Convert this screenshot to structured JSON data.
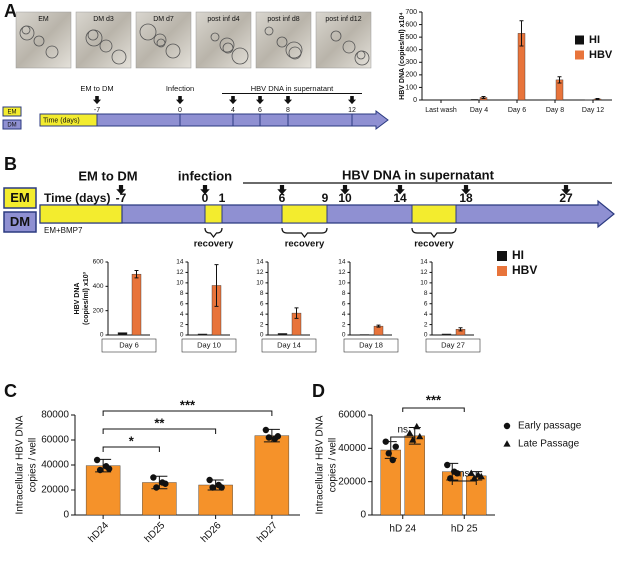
{
  "panel_labels": [
    "A",
    "B",
    "C",
    "D"
  ],
  "images": [
    "EM",
    "DM d3",
    "DM d7",
    "post inf d4",
    "post inf d8",
    "post inf d12"
  ],
  "timeline_a": {
    "stages": [
      "EM",
      "DM"
    ],
    "axis_label": "Time (days)",
    "events": [
      "EM to DM",
      "Infection",
      "HBV DNA in supernatant"
    ],
    "days": [
      "-7",
      "0",
      "4",
      "6",
      "8",
      "12"
    ]
  },
  "timeline_b": {
    "stages": [
      "EM",
      "DM"
    ],
    "axis_label": "Time (days)",
    "events": [
      "EM to DM",
      "infection",
      "HBV DNA in supernatant"
    ],
    "days": [
      "-7",
      "0",
      "1",
      "6",
      "9",
      "10",
      "14",
      "18",
      "27"
    ],
    "medium": "EM+BMP7",
    "recovery": [
      "recovery",
      "recovery",
      "recovery"
    ]
  },
  "chart_data": [
    {
      "type": "bar",
      "ylabel": "HBV DNA (copies/ml) x10⁴",
      "categories": [
        "Last wash",
        "Day 4",
        "Day 6",
        "Day 8",
        "Day 12"
      ],
      "series": [
        {
          "name": "HI",
          "color": "#111111",
          "values": [
            0,
            5,
            3,
            3,
            2
          ]
        },
        {
          "name": "HBV",
          "color": "#e8743b",
          "values": [
            0,
            20,
            530,
            160,
            8
          ],
          "errors": [
            0,
            8,
            100,
            25,
            4
          ]
        }
      ],
      "ylim": [
        0,
        700
      ],
      "yticks": [
        0,
        100,
        200,
        300,
        400,
        500,
        600,
        700
      ]
    },
    {
      "type": "facet-bar",
      "ylabel": [
        "HBV DNA",
        "(copies/ml) x10³"
      ],
      "categories": [
        "Day 6",
        "Day 10",
        "Day 14",
        "Day 18",
        "Day 27"
      ],
      "series": [
        {
          "name": "HI",
          "color": "#111111",
          "values": [
            20,
            0.2,
            0.3,
            0.1,
            0.2
          ]
        },
        {
          "name": "HBV",
          "color": "#e8743b",
          "values": [
            500,
            9.5,
            4.2,
            1.7,
            1.1
          ],
          "errors": [
            30,
            4,
            1,
            0.2,
            0.3
          ]
        }
      ],
      "ylim": [
        [
          0,
          600
        ],
        [
          0,
          14
        ],
        [
          0,
          14
        ],
        [
          0,
          14
        ],
        [
          0,
          14
        ]
      ],
      "yticks": [
        [
          0,
          200,
          400,
          600
        ],
        [
          0,
          2,
          4,
          6,
          8,
          10,
          12,
          14
        ],
        [
          0,
          2,
          4,
          6,
          8,
          10,
          12,
          14
        ],
        [
          0,
          2,
          4,
          6,
          8,
          10,
          12,
          14
        ],
        [
          0,
          2,
          4,
          6,
          8,
          10,
          12,
          14
        ]
      ]
    },
    {
      "type": "bar",
      "ylabel": [
        "Intracellular HBV DNA",
        "copies / well"
      ],
      "categories": [
        "hD24",
        "hD25",
        "hD26",
        "hD27"
      ],
      "color": "#f5922a",
      "values": [
        39500,
        26000,
        24000,
        63500
      ],
      "errors": [
        5000,
        5000,
        4000,
        5000
      ],
      "points": [
        [
          44000,
          37000,
          36000,
          39000
        ],
        [
          30000,
          25000,
          22000,
          26000
        ],
        [
          28000,
          22000,
          22000,
          24000
        ],
        [
          68000,
          63000,
          62000,
          61000
        ]
      ],
      "annotations": [
        {
          "label": "*",
          "pair": [
            0,
            1
          ]
        },
        {
          "label": "**",
          "pair": [
            0,
            2
          ]
        },
        {
          "label": "***",
          "pair": [
            0,
            3
          ]
        }
      ],
      "ylim": [
        0,
        80000
      ],
      "yticks": [
        0,
        20000,
        40000,
        60000,
        80000
      ]
    },
    {
      "type": "grouped-bar",
      "ylabel": [
        "Intracellular HBV DNA",
        "copies / well"
      ],
      "categories": [
        "hD 24",
        "hD 25"
      ],
      "series": [
        {
          "name": "Early passage",
          "marker": "circle",
          "color": "#f5922a",
          "values": [
            39000,
            26000
          ],
          "errors": [
            5000,
            5000
          ],
          "points": [
            [
              44000,
              41000,
              37000,
              33000
            ],
            [
              30000,
              25000,
              22000,
              26000
            ]
          ]
        },
        {
          "name": "Late Passage",
          "marker": "triangle",
          "color": "#f5922a",
          "values": [
            47500,
            23500
          ],
          "errors": [
            5000,
            2500
          ],
          "points": [
            [
              49000,
              47000,
              45000,
              53000
            ],
            [
              25000,
              23000,
              22000,
              24000
            ]
          ]
        }
      ],
      "annotations": [
        {
          "label": "ns",
          "category": 0
        },
        {
          "label": "ns",
          "category": 1
        },
        {
          "label": "***",
          "pair": [
            0,
            1
          ]
        }
      ],
      "ylim": [
        0,
        60000
      ],
      "yticks": [
        0,
        20000,
        40000,
        60000
      ]
    }
  ]
}
